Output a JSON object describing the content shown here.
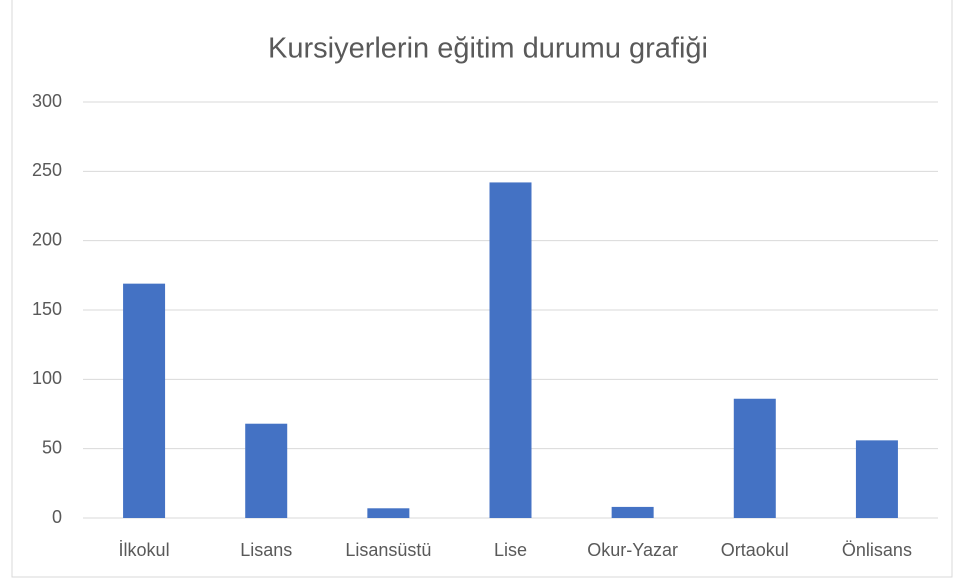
{
  "chart_data": {
    "type": "bar",
    "title": "Kursiyerlerin eğitim durumu grafiği",
    "categories": [
      "İlkokul",
      "Lisans",
      "Lisansüstü",
      "Lise",
      "Okur-Yazar",
      "Ortaokul",
      "Önlisans"
    ],
    "values": [
      169,
      68,
      7,
      242,
      8,
      86,
      56
    ],
    "color": "#4472c4",
    "ylim": [
      0,
      300
    ],
    "yticks": [
      0,
      50,
      100,
      150,
      200,
      250,
      300
    ],
    "grid": true
  }
}
